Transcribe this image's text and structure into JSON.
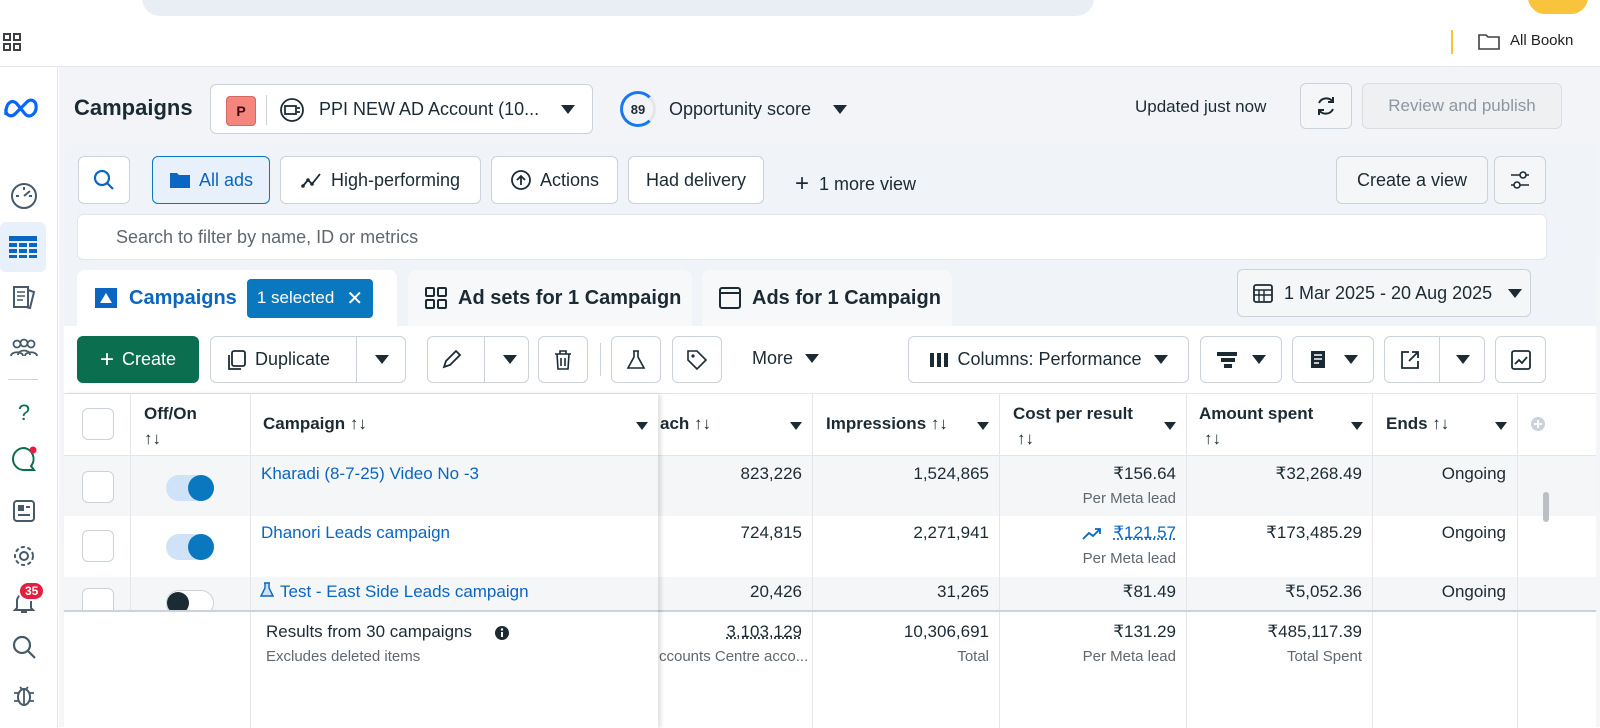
{
  "browser": {
    "bookmarks_label": "All Bookn"
  },
  "nav": {
    "notifications_badge": "35"
  },
  "header": {
    "title": "Campaigns",
    "account_initial": "P",
    "account_name": "PPI NEW AD Account (10...",
    "opportunity_score": "89",
    "opportunity_label": "Opportunity score",
    "updated_text": "Updated just now",
    "publish_label": "Review and publish"
  },
  "views": {
    "all_ads": "All ads",
    "high_performing": "High-performing",
    "actions": "Actions",
    "had_delivery": "Had delivery",
    "more_view": "1 more view",
    "create_view": "Create a view",
    "search_placeholder": "Search to filter by name, ID or metrics"
  },
  "tabs": {
    "campaigns": "Campaigns",
    "selected_chip": "1 selected",
    "ad_sets": "Ad sets for 1 Campaign",
    "ads": "Ads for 1 Campaign",
    "date_range": "1 Mar 2025 - 20 Aug 2025"
  },
  "toolbar": {
    "create": "Create",
    "duplicate": "Duplicate",
    "more": "More",
    "columns": "Columns: Performance"
  },
  "table": {
    "headers": {
      "offon": "Off/On",
      "campaign": "Campaign",
      "reach": "ach",
      "impressions": "Impressions",
      "cost": "Cost per result",
      "amount": "Amount spent",
      "ends": "Ends"
    },
    "sort_glyph": "↑↓",
    "rows": [
      {
        "name": "Kharadi (8-7-25) Video No -3",
        "on": true,
        "reach": "823,226",
        "impressions": "1,524,865",
        "cost": "₹156.64",
        "cost_sub": "Per Meta lead",
        "amount": "₹32,268.49",
        "ends": "Ongoing"
      },
      {
        "name": "Dhanori Leads campaign",
        "on": true,
        "reach": "724,815",
        "impressions": "2,271,941",
        "cost": "₹121.57",
        "cost_sub": "Per Meta lead",
        "amount": "₹173,485.29",
        "ends": "Ongoing"
      },
      {
        "name": "Test - East Side Leads campaign",
        "on": false,
        "reach": "20,426",
        "impressions": "31,265",
        "cost": "₹81.49",
        "cost_sub": "",
        "amount": "₹5,052.36",
        "ends": "Ongoing"
      }
    ],
    "footer": {
      "title": "Results from 30 campaigns",
      "subtitle": "Excludes deleted items",
      "reach": "3,103,129",
      "reach_sub": "ccounts Centre acco...",
      "impressions": "10,306,691",
      "impressions_sub": "Total",
      "cost": "₹131.29",
      "cost_sub": "Per Meta lead",
      "amount": "₹485,117.39",
      "amount_sub": "Total Spent"
    }
  }
}
